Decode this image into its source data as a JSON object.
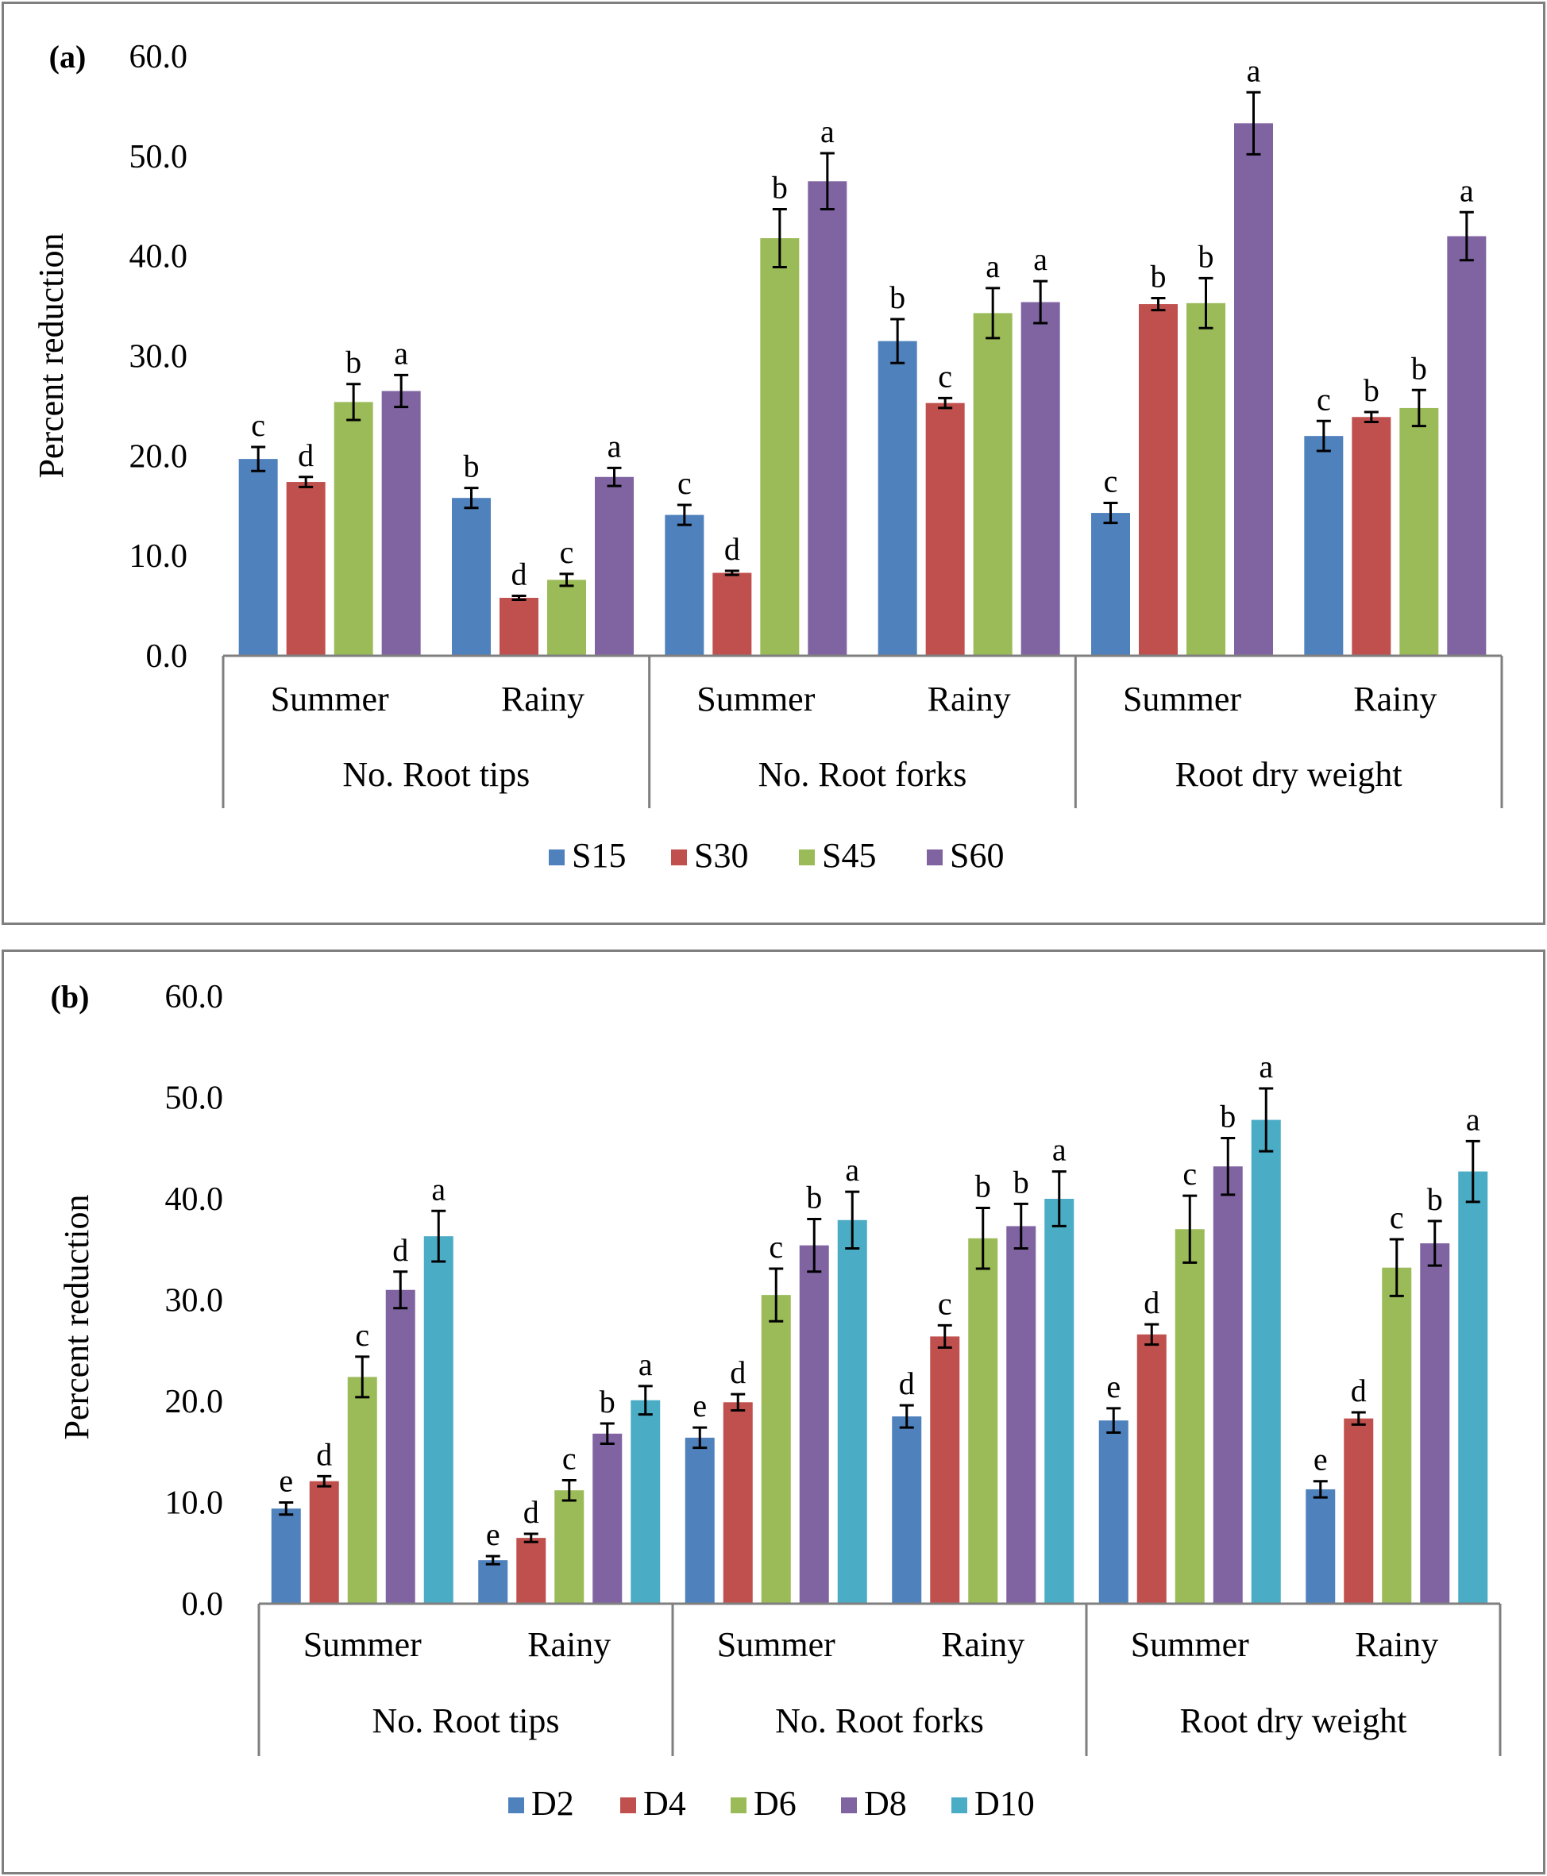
{
  "chart_data": [
    {
      "type": "bar",
      "panel_label": "(a)",
      "ylabel": "Percent reduction",
      "ylim": [
        0,
        60
      ],
      "ytick_labels": [
        "0.0",
        "10.0",
        "20.0",
        "30.0",
        "40.0",
        "50.0",
        "60.0"
      ],
      "groups": [
        "No. Root tips",
        "No. Root forks",
        "Root dry weight"
      ],
      "seasons": [
        "Summer",
        "Rainy"
      ],
      "categories": [
        "No. Root tips - Summer",
        "No. Root tips - Rainy",
        "No. Root forks - Summer",
        "No. Root forks - Rainy",
        "Root dry weight - Summer",
        "Root dry weight - Rainy"
      ],
      "legend_position": "bottom-center",
      "series": [
        {
          "name": "S15",
          "color": "#4f81bd",
          "values": [
            19.7,
            15.8,
            14.1,
            31.5,
            14.3,
            22.0
          ],
          "errors": [
            1.2,
            1.0,
            1.0,
            2.2,
            1.0,
            1.5
          ],
          "letters": [
            "c",
            "b",
            "c",
            "b",
            "c",
            "c"
          ]
        },
        {
          "name": "S30",
          "color": "#c0504d",
          "values": [
            17.4,
            5.8,
            8.3,
            25.3,
            35.2,
            23.9
          ],
          "errors": [
            0.5,
            0.2,
            0.2,
            0.5,
            0.6,
            0.5
          ],
          "letters": [
            "d",
            "d",
            "d",
            "c",
            "b",
            "b"
          ]
        },
        {
          "name": "S45",
          "color": "#9bbb59",
          "values": [
            25.4,
            7.6,
            41.8,
            34.3,
            35.3,
            24.8
          ],
          "errors": [
            1.8,
            0.6,
            2.9,
            2.5,
            2.5,
            1.8
          ],
          "letters": [
            "b",
            "c",
            "b",
            "a",
            "b",
            "b"
          ]
        },
        {
          "name": "S60",
          "color": "#8064a2",
          "values": [
            26.5,
            17.9,
            47.5,
            35.4,
            53.3,
            42.0
          ],
          "errors": [
            1.6,
            0.9,
            2.8,
            2.1,
            3.1,
            2.4
          ],
          "letters": [
            "a",
            "a",
            "a",
            "a",
            "a",
            "a"
          ]
        }
      ]
    },
    {
      "type": "bar",
      "panel_label": "(b)",
      "ylabel": "Percent reduction",
      "ylim": [
        0,
        60
      ],
      "ytick_labels": [
        "0.0",
        "10.0",
        "20.0",
        "30.0",
        "40.0",
        "50.0",
        "60.0"
      ],
      "groups": [
        "No. Root tips",
        "No. Root forks",
        "Root dry weight"
      ],
      "seasons": [
        "Summer",
        "Rainy"
      ],
      "categories": [
        "No. Root tips - Summer",
        "No. Root tips - Rainy",
        "No. Root forks - Summer",
        "No. Root forks - Rainy",
        "Root dry weight - Summer",
        "Root dry weight - Rainy"
      ],
      "legend_position": "bottom-center",
      "series": [
        {
          "name": "D2",
          "color": "#4f81bd",
          "values": [
            9.4,
            4.3,
            16.4,
            18.5,
            18.1,
            11.3
          ],
          "errors": [
            0.6,
            0.4,
            1.0,
            1.1,
            1.2,
            0.8
          ],
          "letters": [
            "e",
            "e",
            "e",
            "d",
            "e",
            "e"
          ]
        },
        {
          "name": "D4",
          "color": "#c0504d",
          "values": [
            12.1,
            6.5,
            19.9,
            26.4,
            26.6,
            18.3
          ],
          "errors": [
            0.5,
            0.4,
            0.8,
            1.1,
            1.0,
            0.6
          ],
          "letters": [
            "d",
            "d",
            "d",
            "c",
            "d",
            "d"
          ]
        },
        {
          "name": "D6",
          "color": "#9bbb59",
          "values": [
            22.4,
            11.2,
            30.5,
            36.1,
            37.0,
            33.2
          ],
          "errors": [
            2.0,
            1.0,
            2.6,
            3.0,
            3.3,
            2.8
          ],
          "letters": [
            "c",
            "c",
            "c",
            "b",
            "c",
            "c"
          ]
        },
        {
          "name": "D8",
          "color": "#8064a2",
          "values": [
            31.0,
            16.8,
            35.4,
            37.3,
            43.2,
            35.6
          ],
          "errors": [
            1.8,
            1.0,
            2.6,
            2.2,
            2.8,
            2.2
          ],
          "letters": [
            "d",
            "b",
            "b",
            "b",
            "b",
            "b"
          ]
        },
        {
          "name": "D10",
          "color": "#4bacc6",
          "values": [
            36.3,
            20.1,
            37.9,
            40.0,
            47.8,
            42.7
          ],
          "errors": [
            2.5,
            1.4,
            2.8,
            2.7,
            3.1,
            3.0
          ],
          "letters": [
            "a",
            "a",
            "a",
            "a",
            "a",
            "a"
          ]
        }
      ]
    }
  ]
}
